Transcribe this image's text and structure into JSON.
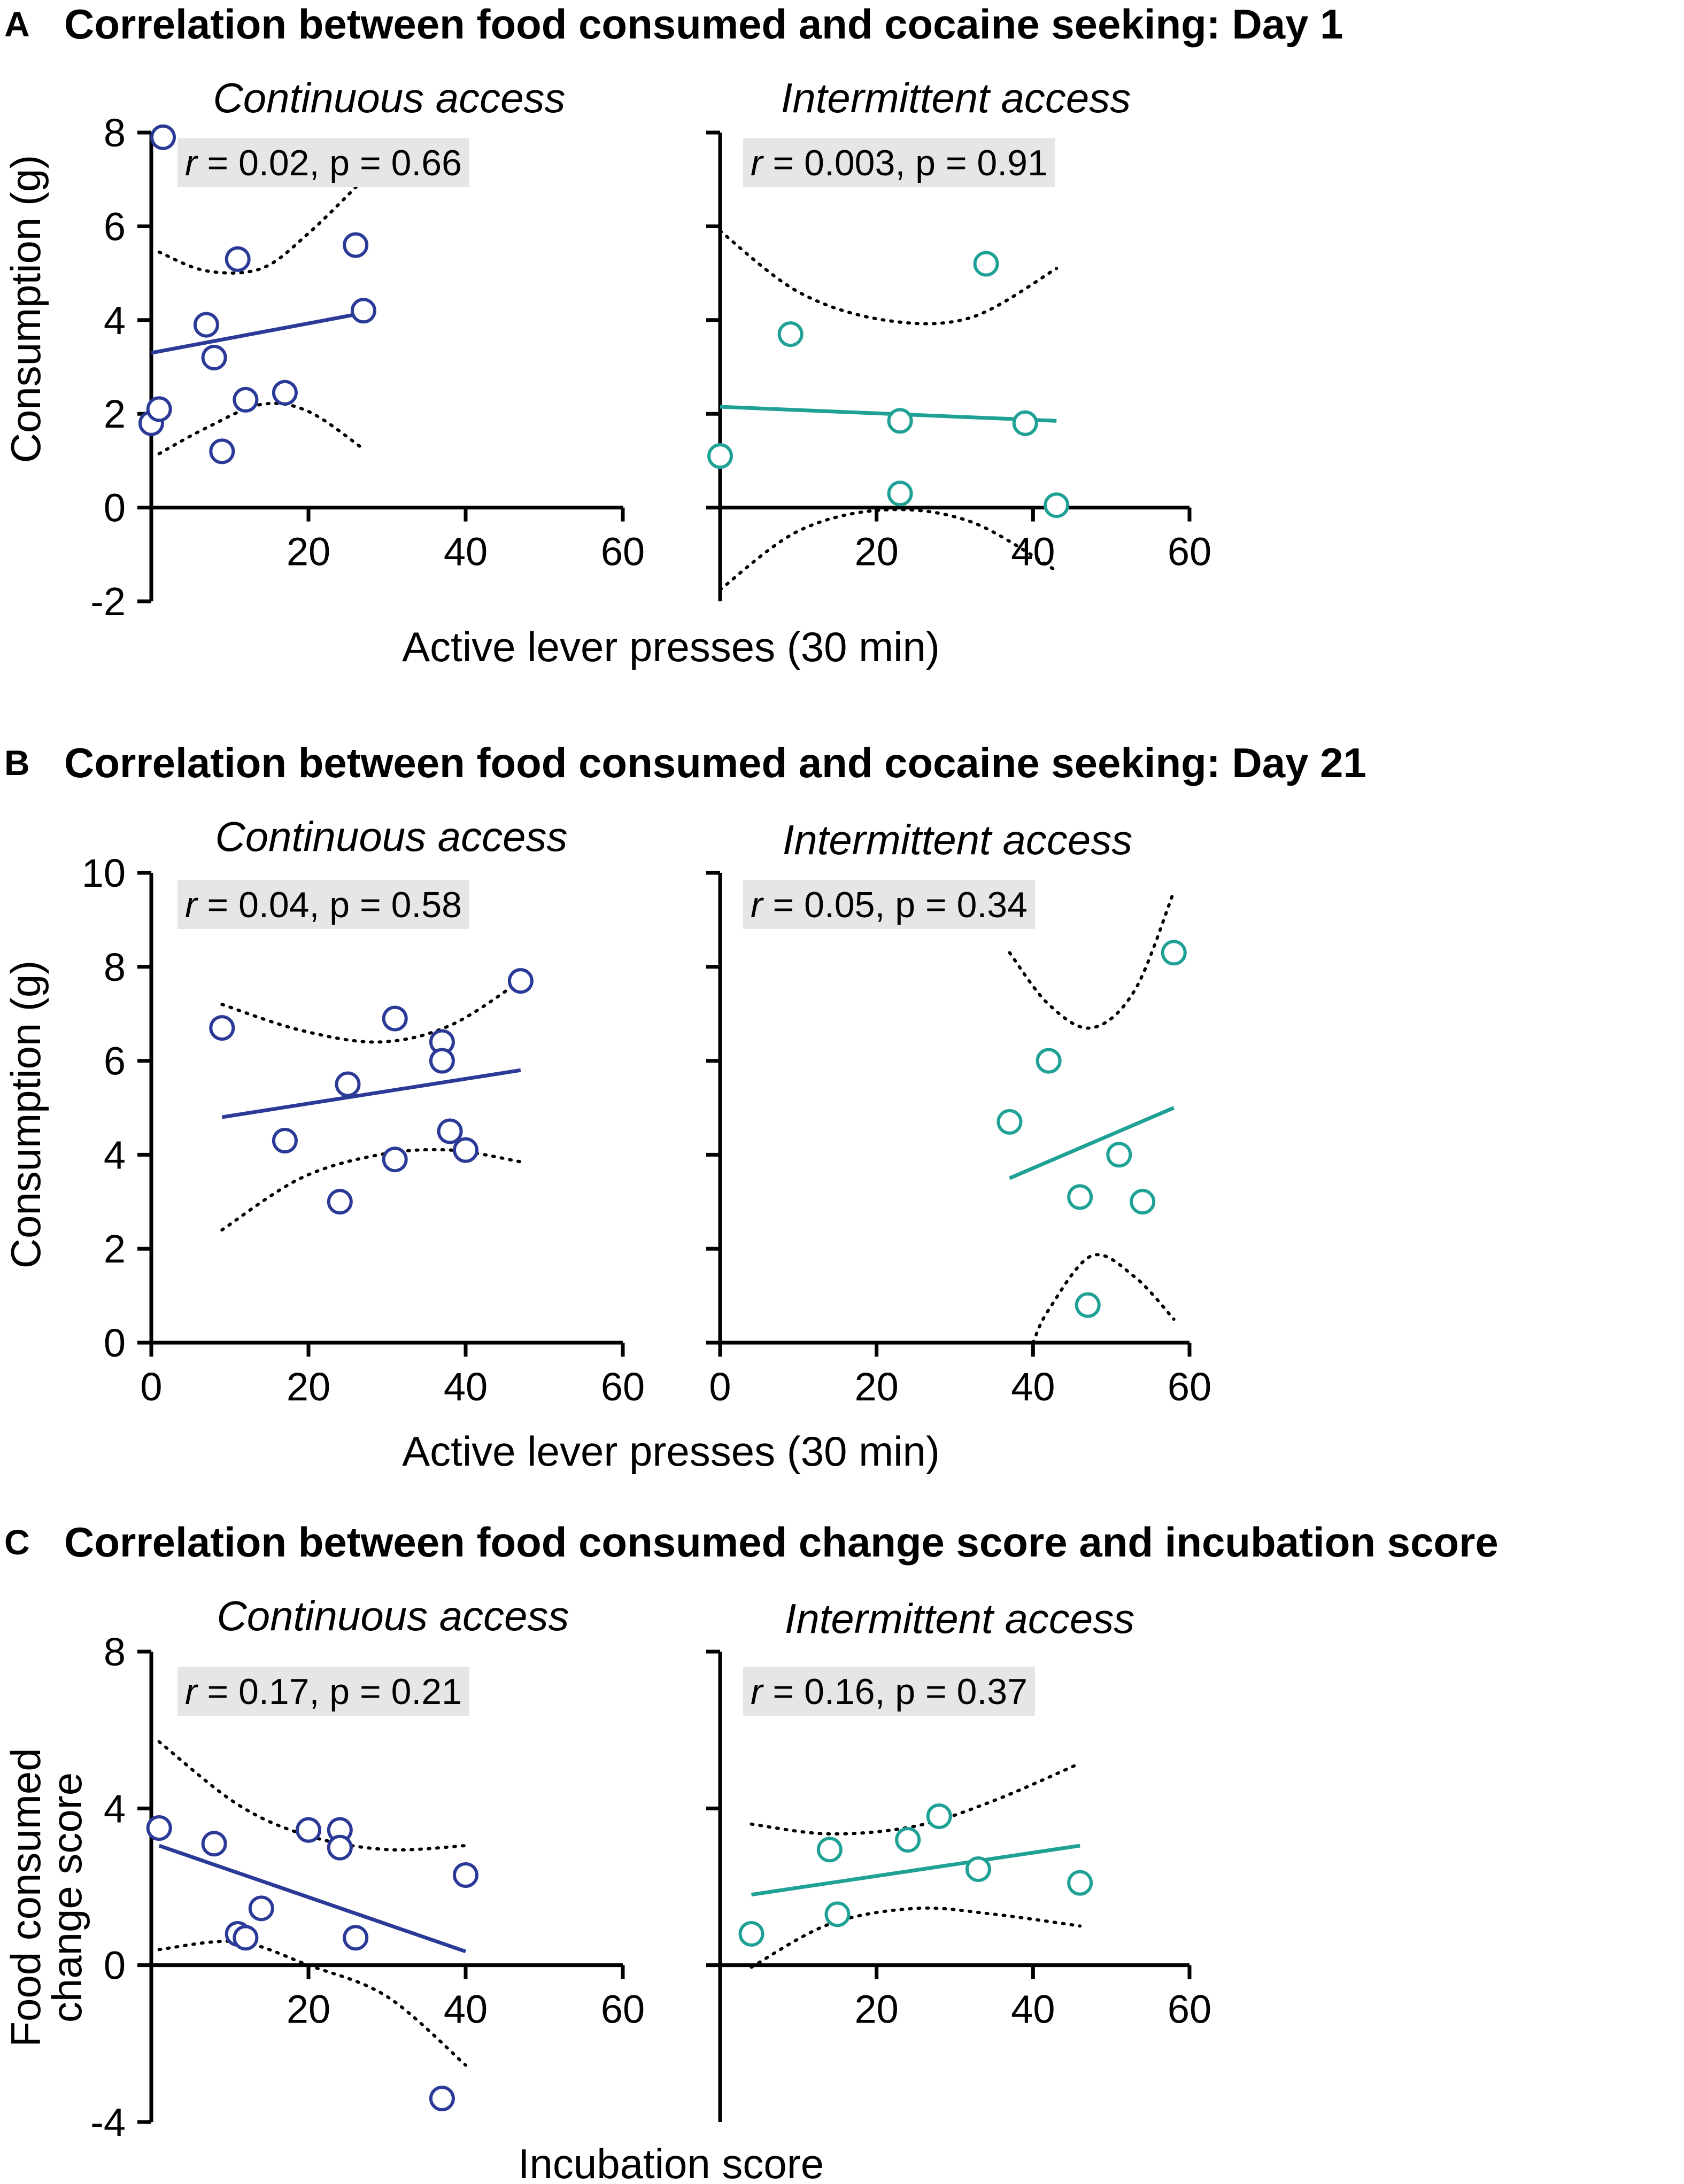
{
  "figure": {
    "panels": [
      {
        "letter": "A",
        "title": "Correlation between food consumed and cocaine seeking: Day 1",
        "xlabel": "Active lever presses (30 min)",
        "ylabel": "Consumption (g)",
        "ylabel_lines": [
          "Consumption (g)"
        ]
      },
      {
        "letter": "B",
        "title": "Correlation between food consumed and cocaine seeking: Day 21",
        "xlabel": "Active lever presses (30 min)",
        "ylabel": "Consumption (g)",
        "ylabel_lines": [
          "Consumption (g)"
        ]
      },
      {
        "letter": "C",
        "title": "Correlation between food consumed change score and incubation score",
        "xlabel": "Incubation score",
        "ylabel": "Food consumed change score",
        "ylabel_lines": [
          "Food consumed",
          "change score"
        ]
      }
    ]
  },
  "colors": {
    "continuous": "#2b3a97",
    "intermittent": "#1fa195",
    "stat_box": "#e6e6e6",
    "axis": "#000000"
  },
  "chart_data": [
    {
      "type": "scatter",
      "panel": "A",
      "title": "Continuous access",
      "stat_r": "r",
      "stat_rest": " = 0.02, p = 0.66",
      "xlim": [
        0,
        60
      ],
      "ylim": [
        -2,
        8
      ],
      "xticks": [
        20,
        40,
        60
      ],
      "xtick_labels": [
        "20",
        "40",
        "60"
      ],
      "yticks": [
        -2,
        0,
        2,
        4,
        6,
        8
      ],
      "ytick_labels": [
        "-2",
        "0",
        "2",
        "4",
        "6",
        "8"
      ],
      "x_axis_at": 0,
      "points": [
        [
          0,
          1.8
        ],
        [
          1,
          2.1
        ],
        [
          1.5,
          7.9
        ],
        [
          7,
          3.9
        ],
        [
          8,
          3.2
        ],
        [
          9,
          1.2
        ],
        [
          11,
          5.3
        ],
        [
          12,
          2.3
        ],
        [
          17,
          2.45
        ],
        [
          26,
          5.6
        ],
        [
          27,
          4.2
        ]
      ],
      "fit": [
        [
          0,
          3.3
        ],
        [
          27,
          4.15
        ]
      ],
      "ci_upper": [
        [
          1,
          5.45
        ],
        [
          7,
          5.05
        ],
        [
          14,
          5.1
        ],
        [
          20,
          5.85
        ],
        [
          27,
          7.0
        ]
      ],
      "ci_lower": [
        [
          1,
          1.15
        ],
        [
          7,
          1.7
        ],
        [
          14,
          2.2
        ],
        [
          20,
          2.05
        ],
        [
          27,
          1.25
        ]
      ]
    },
    {
      "type": "scatter",
      "panel": "A",
      "title": "Intermittent access",
      "stat_r": "r",
      "stat_rest": " = 0.003, p = 0.91",
      "xlim": [
        0,
        60
      ],
      "ylim": [
        -2,
        8
      ],
      "xticks": [
        20,
        40,
        60
      ],
      "xtick_labels": [
        "20",
        "40",
        "60"
      ],
      "yticks": [
        0,
        2,
        4,
        6,
        8
      ],
      "ytick_labels": [],
      "x_axis_at": 0,
      "points": [
        [
          0,
          1.1
        ],
        [
          9,
          3.7
        ],
        [
          23,
          1.85
        ],
        [
          23,
          0.3
        ],
        [
          34,
          5.2
        ],
        [
          39,
          1.8
        ],
        [
          43,
          0.05
        ]
      ],
      "fit": [
        [
          0,
          2.15
        ],
        [
          43,
          1.85
        ]
      ],
      "ci_upper": [
        [
          0,
          5.9
        ],
        [
          10,
          4.6
        ],
        [
          21,
          4.0
        ],
        [
          32,
          4.05
        ],
        [
          43,
          5.1
        ]
      ],
      "ci_lower": [
        [
          0,
          -1.75
        ],
        [
          10,
          -0.5
        ],
        [
          21,
          -0.05
        ],
        [
          32,
          -0.3
        ],
        [
          43,
          -1.35
        ]
      ]
    },
    {
      "type": "scatter",
      "panel": "B",
      "title": "Continuous access",
      "stat_r": "r",
      "stat_rest": " = 0.04, p = 0.58",
      "xlim": [
        0,
        60
      ],
      "ylim": [
        0,
        10
      ],
      "xticks": [
        0,
        20,
        40,
        60
      ],
      "xtick_labels": [
        "0",
        "20",
        "40",
        "60"
      ],
      "yticks": [
        0,
        2,
        4,
        6,
        8,
        10
      ],
      "ytick_labels": [
        "0",
        "2",
        "4",
        "6",
        "8",
        "10"
      ],
      "x_axis_at": 0,
      "points": [
        [
          9,
          6.7
        ],
        [
          17,
          4.3
        ],
        [
          24,
          3.0
        ],
        [
          25,
          5.5
        ],
        [
          31,
          6.9
        ],
        [
          31,
          3.9
        ],
        [
          37,
          6.4
        ],
        [
          37,
          6.0
        ],
        [
          38,
          4.5
        ],
        [
          40,
          4.1
        ],
        [
          47,
          7.7
        ]
      ],
      "fit": [
        [
          9,
          4.8
        ],
        [
          47,
          5.8
        ]
      ],
      "ci_upper": [
        [
          9,
          7.2
        ],
        [
          19,
          6.65
        ],
        [
          29,
          6.4
        ],
        [
          38,
          6.75
        ],
        [
          47,
          7.7
        ]
      ],
      "ci_lower": [
        [
          9,
          2.4
        ],
        [
          19,
          3.5
        ],
        [
          29,
          4.0
        ],
        [
          38,
          4.1
        ],
        [
          47,
          3.85
        ]
      ]
    },
    {
      "type": "scatter",
      "panel": "B",
      "title": "Intermittent access",
      "stat_r": "r",
      "stat_rest": " = 0.05, p = 0.34",
      "xlim": [
        0,
        60
      ],
      "ylim": [
        0,
        10
      ],
      "xticks": [
        0,
        20,
        40,
        60
      ],
      "xtick_labels": [
        "0",
        "20",
        "40",
        "60"
      ],
      "yticks": [
        0,
        2,
        4,
        6,
        8,
        10
      ],
      "ytick_labels": [],
      "x_axis_at": 0,
      "points": [
        [
          37,
          4.7
        ],
        [
          42,
          6.0
        ],
        [
          46,
          3.1
        ],
        [
          47,
          0.8
        ],
        [
          51,
          4.0
        ],
        [
          54,
          3.0
        ],
        [
          58,
          8.3
        ]
      ],
      "fit": [
        [
          37,
          3.5
        ],
        [
          58,
          5.0
        ]
      ],
      "ci_upper": [
        [
          37,
          8.3
        ],
        [
          42,
          7.2
        ],
        [
          47.5,
          6.7
        ],
        [
          53,
          7.5
        ],
        [
          58,
          9.6
        ]
      ],
      "ci_lower": [
        [
          40,
          0.0
        ],
        [
          42,
          0.7
        ],
        [
          47.5,
          1.85
        ],
        [
          53,
          1.4
        ],
        [
          58,
          0.5
        ]
      ]
    },
    {
      "type": "scatter",
      "panel": "C",
      "title": "Continuous access",
      "stat_r": "r",
      "stat_rest": " = 0.17, p = 0.21",
      "xlim": [
        0,
        60
      ],
      "ylim": [
        -4,
        8
      ],
      "xticks": [
        20,
        40,
        60
      ],
      "xtick_labels": [
        "20",
        "40",
        "60"
      ],
      "yticks": [
        -4,
        0,
        4,
        8
      ],
      "ytick_labels": [
        "-4",
        "0",
        "4",
        "8"
      ],
      "x_axis_at": 0,
      "points": [
        [
          1,
          3.5
        ],
        [
          8,
          3.1
        ],
        [
          11,
          0.8
        ],
        [
          12,
          0.7
        ],
        [
          14,
          1.45
        ],
        [
          20,
          3.45
        ],
        [
          24,
          3.45
        ],
        [
          24,
          3.0
        ],
        [
          26,
          0.7
        ],
        [
          37,
          -3.4
        ],
        [
          40,
          2.3
        ]
      ],
      "fit": [
        [
          1,
          3.05
        ],
        [
          40,
          0.35
        ]
      ],
      "ci_upper": [
        [
          1,
          5.7
        ],
        [
          11,
          4.1
        ],
        [
          20,
          3.3
        ],
        [
          30,
          2.95
        ],
        [
          40,
          3.05
        ]
      ],
      "ci_lower": [
        [
          1,
          0.4
        ],
        [
          11,
          0.6
        ],
        [
          20,
          0.0
        ],
        [
          30,
          -0.8
        ],
        [
          40,
          -2.55
        ]
      ]
    },
    {
      "type": "scatter",
      "panel": "C",
      "title": "Intermittent access",
      "stat_r": "r",
      "stat_rest": " = 0.16, p = 0.37",
      "xlim": [
        0,
        60
      ],
      "ylim": [
        -4,
        8
      ],
      "xticks": [
        20,
        40,
        60
      ],
      "xtick_labels": [
        "20",
        "40",
        "60"
      ],
      "yticks": [
        0,
        4,
        8
      ],
      "ytick_labels": [],
      "x_axis_at": 0,
      "points": [
        [
          4,
          0.8
        ],
        [
          14,
          2.95
        ],
        [
          15,
          1.3
        ],
        [
          24,
          3.2
        ],
        [
          28,
          3.8
        ],
        [
          33,
          2.45
        ],
        [
          46,
          2.1
        ]
      ],
      "fit": [
        [
          4,
          1.8
        ],
        [
          46,
          3.05
        ]
      ],
      "ci_upper": [
        [
          4,
          3.6
        ],
        [
          14,
          3.35
        ],
        [
          25,
          3.55
        ],
        [
          35,
          4.2
        ],
        [
          46,
          5.15
        ]
      ],
      "ci_lower": [
        [
          4,
          -0.05
        ],
        [
          14,
          1.05
        ],
        [
          25,
          1.45
        ],
        [
          35,
          1.3
        ],
        [
          46,
          1.0
        ]
      ]
    }
  ]
}
